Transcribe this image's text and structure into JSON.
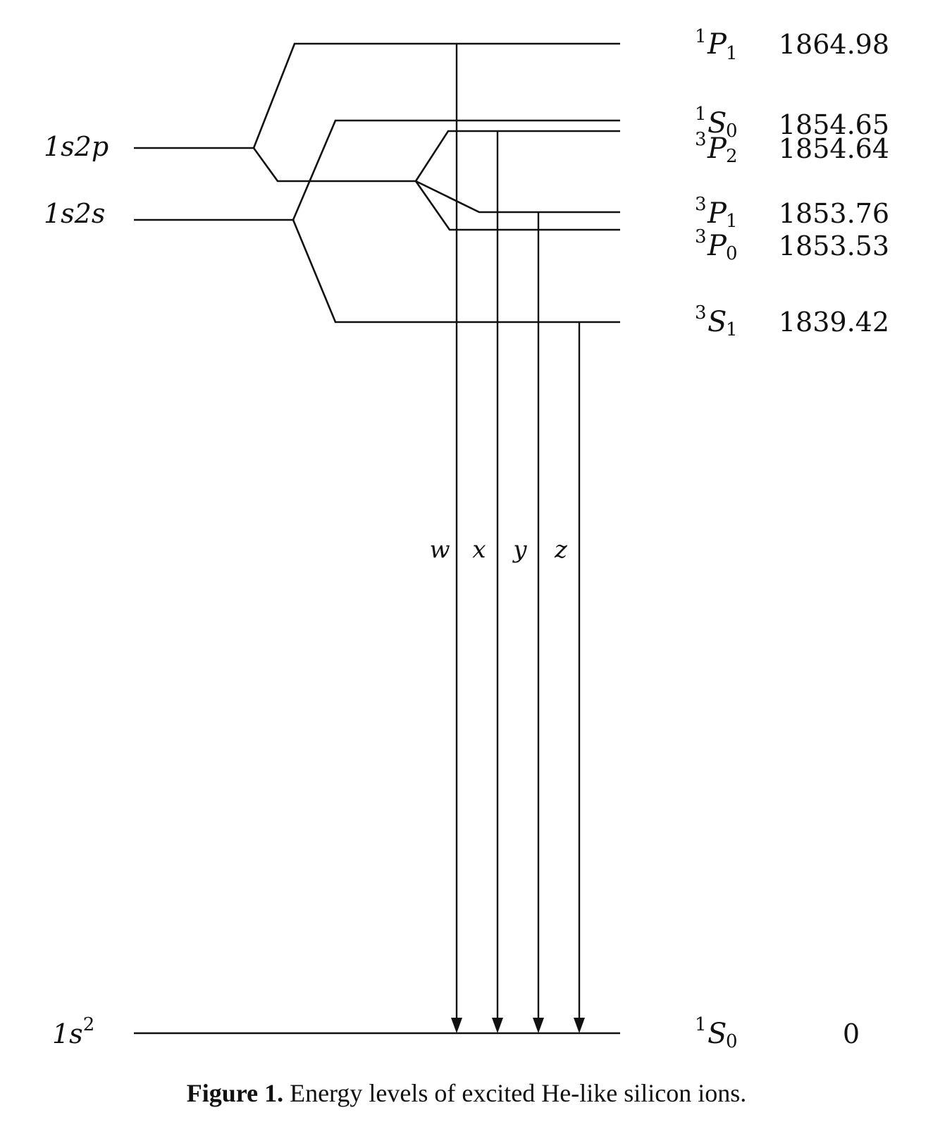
{
  "config": {
    "left_labels": [
      "1s2p",
      "1s2s",
      "1s²"
    ]
  },
  "config_labels": {
    "p": {
      "main": "1s2p"
    },
    "s": {
      "main": "1s2s"
    },
    "ground": {
      "main": "1s",
      "sup": "2"
    }
  },
  "levels": [
    {
      "id": "1P1",
      "mult": "1",
      "letter": "P",
      "sub": "1",
      "energy": "1864.98"
    },
    {
      "id": "1S0",
      "mult": "1",
      "letter": "S",
      "sub": "0",
      "energy": "1854.65"
    },
    {
      "id": "3P2",
      "mult": "3",
      "letter": "P",
      "sub": "2",
      "energy": "1854.64"
    },
    {
      "id": "3P1",
      "mult": "3",
      "letter": "P",
      "sub": "1",
      "energy": "1853.76"
    },
    {
      "id": "3P0",
      "mult": "3",
      "letter": "P",
      "sub": "0",
      "energy": "1853.53"
    },
    {
      "id": "3S1",
      "mult": "3",
      "letter": "S",
      "sub": "1",
      "energy": "1839.42"
    },
    {
      "id": "ground",
      "mult": "1",
      "letter": "S",
      "sub": "0",
      "energy": "0"
    }
  ],
  "transitions": [
    {
      "label": "w",
      "from": "1P1",
      "to": "ground"
    },
    {
      "label": "x",
      "from": "3P2",
      "to": "ground"
    },
    {
      "label": "y",
      "from": "3P1",
      "to": "ground"
    },
    {
      "label": "z",
      "from": "3S1",
      "to": "ground"
    }
  ],
  "caption": {
    "bold": "Figure 1.",
    "text": " Energy levels of excited He-like silicon ions."
  }
}
